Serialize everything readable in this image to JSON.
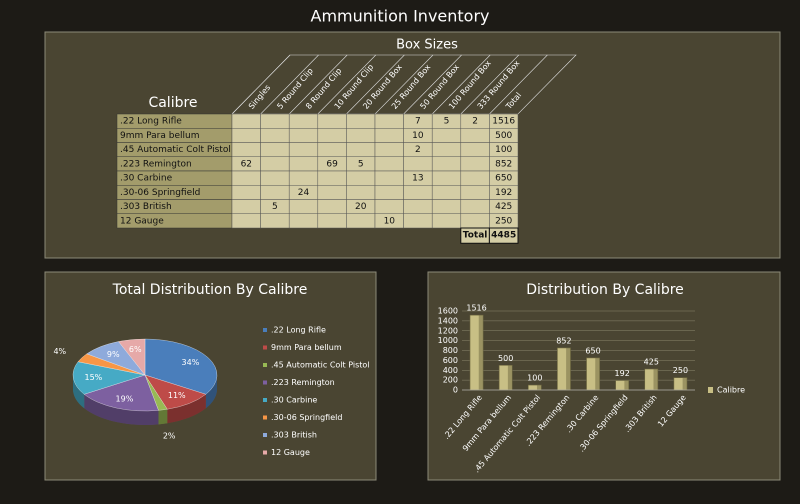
{
  "title": "Ammunition Inventory",
  "table": {
    "header": "Box Sizes",
    "row_header": "Calibre",
    "columns": [
      "Singles",
      "5 Round Clip",
      "8 Round Clip",
      "10 Round Clip",
      "20 Round Box",
      "25 Round Box",
      "50 Round Box",
      "100 Round Box",
      "333 Round Box",
      "Total"
    ],
    "rows": [
      [
        ".22 Long Rifle",
        null,
        null,
        null,
        null,
        null,
        null,
        7,
        5,
        2,
        1516
      ],
      [
        "9mm Para bellum",
        null,
        null,
        null,
        null,
        null,
        null,
        10,
        null,
        null,
        500
      ],
      [
        ".45 Automatic Colt Pistol",
        null,
        null,
        null,
        null,
        null,
        null,
        2,
        null,
        null,
        100
      ],
      [
        ".223 Remington",
        62,
        null,
        null,
        69,
        5,
        null,
        null,
        null,
        null,
        852
      ],
      [
        ".30 Carbine",
        null,
        null,
        null,
        null,
        null,
        null,
        13,
        null,
        null,
        650
      ],
      [
        ".30-06 Springfield",
        null,
        null,
        24,
        null,
        null,
        null,
        null,
        null,
        null,
        192
      ],
      [
        ".303 British",
        null,
        5,
        null,
        null,
        20,
        null,
        null,
        null,
        null,
        425
      ],
      [
        "12 Gauge",
        null,
        null,
        null,
        null,
        null,
        10,
        null,
        null,
        null,
        250
      ]
    ],
    "total_label": "Total",
    "total": 4485
  },
  "chart_data": [
    {
      "type": "pie",
      "title": "Total Distribution By Calibre",
      "categories": [
        ".22 Long Rifle",
        "9mm Para bellum",
        ".45 Automatic Colt Pistol",
        ".223 Remington",
        ".30 Carbine",
        ".30-06 Springfield",
        ".303 British",
        "12 Gauge"
      ],
      "values": [
        34,
        11,
        2,
        19,
        15,
        4,
        9,
        6
      ],
      "value_labels": [
        "34%",
        "11%",
        "2%",
        "19%",
        "15%",
        "4%",
        "9%",
        "6%"
      ],
      "colors": [
        "#4a7ebb",
        "#be4b48",
        "#98b954",
        "#7d60a0",
        "#46aac5",
        "#f79646",
        "#8eaadb",
        "#e6a9a8"
      ]
    },
    {
      "type": "bar",
      "title": "Distribution By Calibre",
      "categories": [
        ".22 Long Rifle",
        "9mm Para bellum",
        ".45 Automatic Colt Pistol",
        ".223 Remington",
        ".30 Carbine",
        ".30-06 Springfield",
        ".303 British",
        "12 Gauge"
      ],
      "series": [
        {
          "name": "Calibre",
          "color": "#c8bf85",
          "values": [
            1516,
            500,
            100,
            852,
            650,
            192,
            425,
            250
          ]
        }
      ],
      "ylim": [
        0,
        1600
      ],
      "yticks": [
        0,
        200,
        400,
        600,
        800,
        1000,
        1200,
        1400,
        1600
      ],
      "grid": true
    }
  ]
}
